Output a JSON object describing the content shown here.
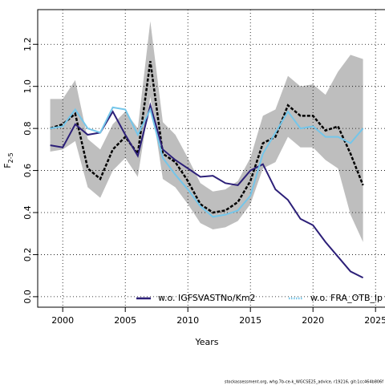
{
  "chart_data": {
    "type": "line",
    "xlabel": "Years",
    "ylabel": "F",
    "ylabel_sub": "2-5",
    "footer": "stockassessment.org, whg.7b-ce-k_WGCSE25_advice, r19216, git:1cc464b806f",
    "x": [
      1999,
      2000,
      2001,
      2002,
      2003,
      2004,
      2005,
      2006,
      2007,
      2008,
      2009,
      2010,
      2011,
      2012,
      2013,
      2014,
      2015,
      2016,
      2017,
      2018,
      2019,
      2020,
      2021,
      2022,
      2023,
      2024
    ],
    "band": {
      "color": "#bebebe",
      "upper": [
        0.94,
        0.94,
        1.03,
        0.75,
        0.7,
        0.82,
        0.88,
        0.8,
        1.31,
        0.83,
        0.77,
        0.66,
        0.54,
        0.5,
        0.51,
        0.55,
        0.66,
        0.86,
        0.89,
        1.05,
        1.0,
        1.01,
        0.96,
        1.07,
        1.15,
        1.13
      ],
      "lower": [
        0.69,
        0.7,
        0.74,
        0.52,
        0.47,
        0.6,
        0.66,
        0.57,
        0.95,
        0.56,
        0.52,
        0.44,
        0.35,
        0.32,
        0.33,
        0.36,
        0.44,
        0.61,
        0.64,
        0.76,
        0.71,
        0.71,
        0.65,
        0.61,
        0.39,
        0.26
      ]
    },
    "estimate": {
      "color": "#000000",
      "values": [
        0.8,
        0.82,
        0.87,
        0.61,
        0.56,
        0.7,
        0.76,
        0.68,
        1.12,
        0.68,
        0.64,
        0.55,
        0.44,
        0.4,
        0.41,
        0.45,
        0.55,
        0.73,
        0.76,
        0.91,
        0.86,
        0.86,
        0.79,
        0.81,
        0.68,
        0.53
      ]
    },
    "series": [
      {
        "name": "w.o. IGFSVASTNo/Km2",
        "color": "#2c1f78",
        "values": [
          0.72,
          0.71,
          0.82,
          0.77,
          0.78,
          0.88,
          0.77,
          0.67,
          0.91,
          0.7,
          0.65,
          0.61,
          0.57,
          0.575,
          0.54,
          0.53,
          0.6,
          0.63,
          0.51,
          0.46,
          0.37,
          0.34,
          0.26,
          0.19,
          0.12,
          0.09
        ]
      },
      {
        "name": "w.o. FRA_OTB_lp",
        "color": "#74c6ea",
        "values": [
          0.8,
          0.81,
          0.89,
          0.8,
          0.78,
          0.9,
          0.89,
          0.77,
          0.89,
          0.66,
          0.58,
          0.51,
          0.43,
          0.38,
          0.39,
          0.41,
          0.48,
          0.68,
          0.78,
          0.88,
          0.8,
          0.81,
          0.76,
          0.76,
          0.73,
          0.8
        ]
      }
    ],
    "xlim": [
      1998,
      2025.5
    ],
    "ylim": [
      -0.05,
      1.365
    ],
    "xticks": [
      2000,
      2005,
      2010,
      2015,
      2020,
      2025
    ],
    "yticks": [
      {
        "value": 0,
        "label": "0.0"
      },
      0.2,
      0.4,
      0.6,
      0.8,
      {
        "value": 1,
        "label": "1.0"
      },
      1.2
    ],
    "grid": true
  }
}
